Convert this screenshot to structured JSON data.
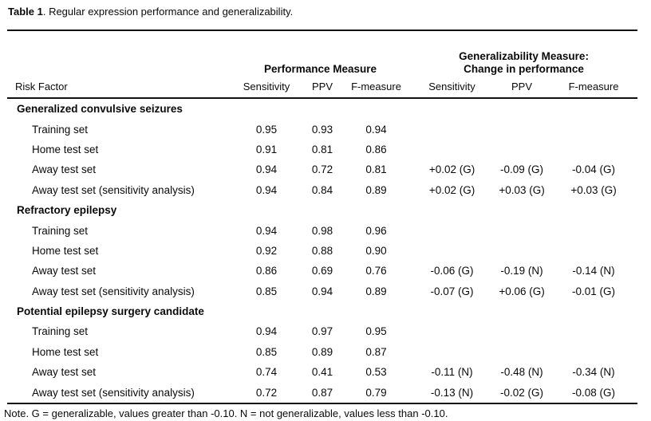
{
  "title": {
    "bold": "Table 1",
    "rest": ". Regular expression performance and generalizability."
  },
  "table": {
    "risk_factor_header": "Risk Factor",
    "group_headers": {
      "performance": "Performance Measure",
      "generalizability_line1": "Generalizability Measure:",
      "generalizability_line2": "Change in performance"
    },
    "sub_headers": [
      "Sensitivity",
      "PPV",
      "F-measure",
      "Sensitivity",
      "PPV",
      "F-measure"
    ],
    "sections": [
      {
        "name": "Generalized convulsive seizures",
        "rows": [
          {
            "label": "Training set",
            "values": [
              "0.95",
              "0.93",
              "0.94",
              "",
              "",
              ""
            ]
          },
          {
            "label": "Home test set",
            "values": [
              "0.91",
              "0.81",
              "0.86",
              "",
              "",
              ""
            ]
          },
          {
            "label": "Away test set",
            "values": [
              "0.94",
              "0.72",
              "0.81",
              "+0.02 (G)",
              "-0.09 (G)",
              "-0.04 (G)"
            ]
          },
          {
            "label": "Away test set (sensitivity analysis)",
            "values": [
              "0.94",
              "0.84",
              "0.89",
              "+0.02 (G)",
              "+0.03 (G)",
              "+0.03 (G)"
            ]
          }
        ]
      },
      {
        "name": "Refractory epilepsy",
        "rows": [
          {
            "label": "Training set",
            "values": [
              "0.94",
              "0.98",
              "0.96",
              "",
              "",
              ""
            ]
          },
          {
            "label": "Home test set",
            "values": [
              "0.92",
              "0.88",
              "0.90",
              "",
              "",
              ""
            ]
          },
          {
            "label": "Away test set",
            "values": [
              "0.86",
              "0.69",
              "0.76",
              "-0.06 (G)",
              "-0.19 (N)",
              "-0.14 (N)"
            ]
          },
          {
            "label": "Away test set (sensitivity analysis)",
            "values": [
              "0.85",
              "0.94",
              "0.89",
              "-0.07 (G)",
              "+0.06 (G)",
              "-0.01 (G)"
            ]
          }
        ]
      },
      {
        "name": "Potential epilepsy surgery candidate",
        "rows": [
          {
            "label": "Training set",
            "values": [
              "0.94",
              "0.97",
              "0.95",
              "",
              "",
              ""
            ]
          },
          {
            "label": "Home test set",
            "values": [
              "0.85",
              "0.89",
              "0.87",
              "",
              "",
              ""
            ]
          },
          {
            "label": "Away test set",
            "values": [
              "0.74",
              "0.41",
              "0.53",
              "-0.11 (N)",
              "-0.48 (N)",
              "-0.34 (N)"
            ]
          },
          {
            "label": "Away test set (sensitivity analysis)",
            "values": [
              "0.72",
              "0.87",
              "0.79",
              "-0.13 (N)",
              "-0.02 (G)",
              "-0.08 (G)"
            ]
          }
        ]
      }
    ],
    "note": "Note.  G = generalizable, values greater than -0.10. N = not generalizable, values less than -0.10."
  }
}
